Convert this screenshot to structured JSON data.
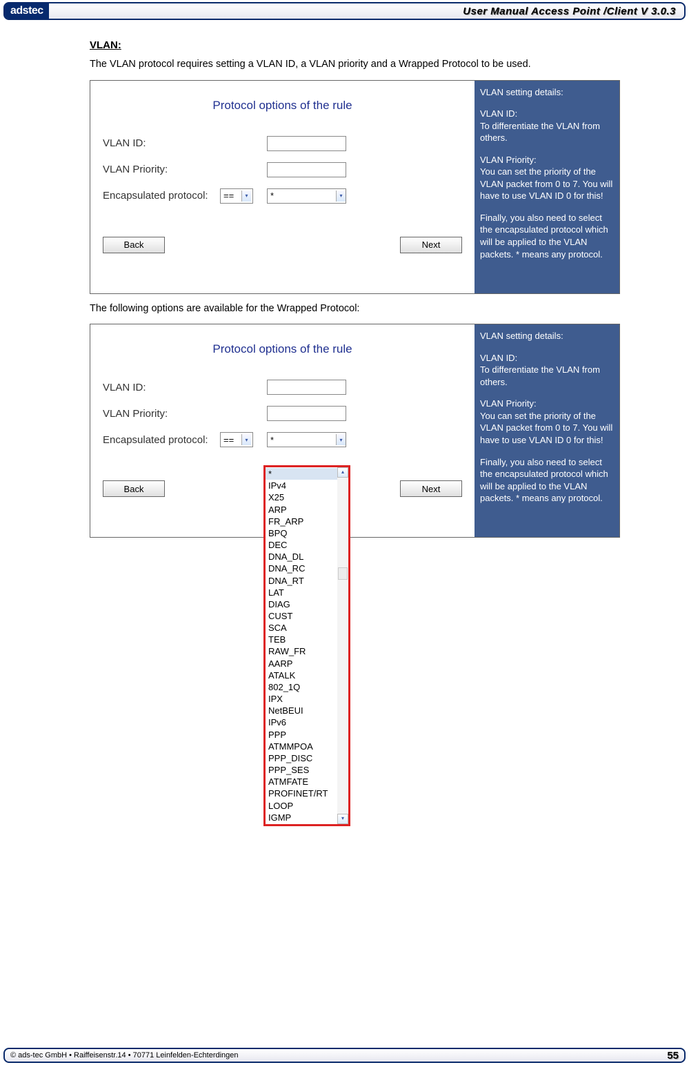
{
  "header": {
    "logo_text": "adstec",
    "title": "User Manual Access  Point /Client V 3.0.3"
  },
  "section": {
    "heading": "VLAN:",
    "intro": "The VLAN protocol requires setting a VLAN ID, a VLAN priority and a Wrapped Protocol to be used.",
    "after_first": "The following options are available for the Wrapped Protocol:"
  },
  "panel": {
    "title": "Protocol options of the rule",
    "vlan_id_label": "VLAN ID:",
    "vlan_priority_label": "VLAN Priority:",
    "encapsulated_label": "Encapsulated protocol:",
    "op_value": "==",
    "proto_value": "*",
    "back": "Back",
    "next": "Next"
  },
  "help": {
    "h": "VLAN setting details:",
    "p1a": "VLAN ID:",
    "p1b": "To differentiate the VLAN from others.",
    "p2a": "VLAN Priority:",
    "p2b": "You can set the priority of the VLAN packet from 0 to 7. You will have to use VLAN ID 0 for this!",
    "p3": "Finally, you also need to select the encapsulated protocol which will be applied to the VLAN packets. * means any protocol."
  },
  "protocols": [
    "*",
    "IPv4",
    "X25",
    "ARP",
    "FR_ARP",
    "BPQ",
    "DEC",
    "DNA_DL",
    "DNA_RC",
    "DNA_RT",
    "LAT",
    "DIAG",
    "CUST",
    "SCA",
    "TEB",
    "RAW_FR",
    "AARP",
    "ATALK",
    "802_1Q",
    "IPX",
    "NetBEUI",
    "IPv6",
    "PPP",
    "ATMMPOA",
    "PPP_DISC",
    "PPP_SES",
    "ATMFATE",
    "PROFINET/RT",
    "LOOP",
    "IGMP"
  ],
  "footer": {
    "copyright": "© ads-tec GmbH • Raiffeisenstr.14 • 70771 Leinfelden-Echterdingen",
    "page": "55"
  }
}
